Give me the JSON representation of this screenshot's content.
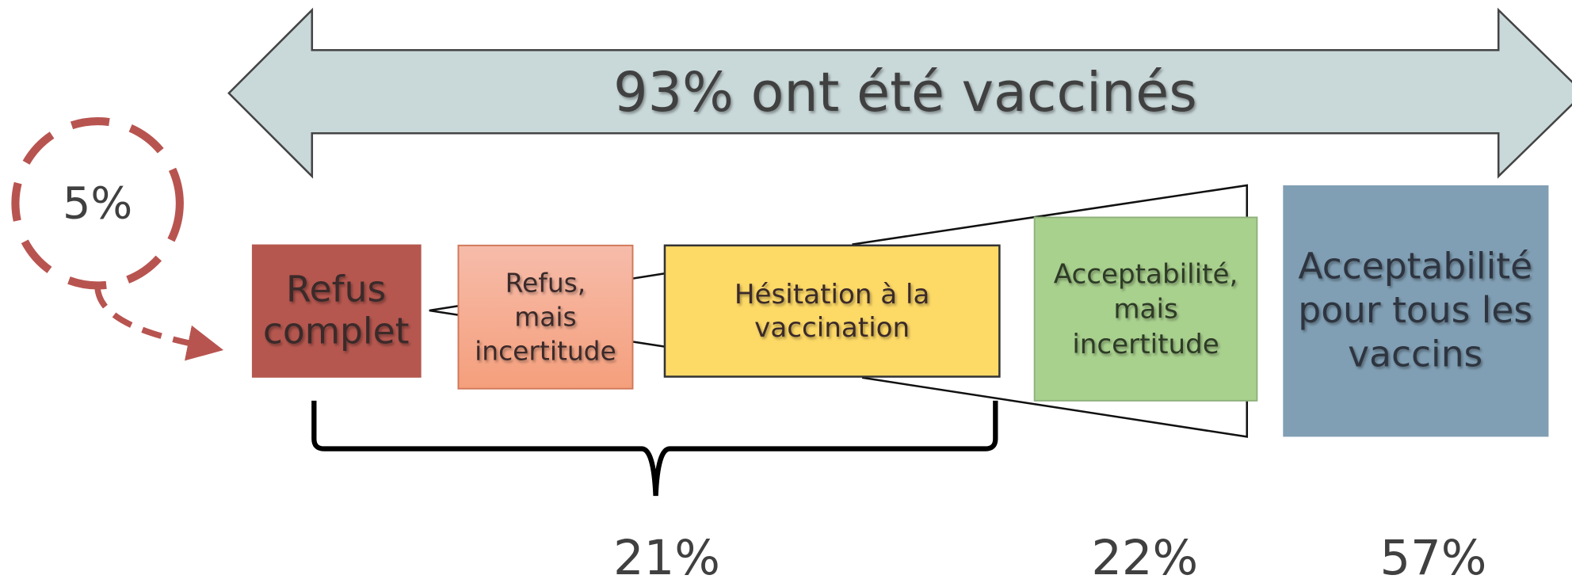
{
  "banner": "93% ont été vaccinés",
  "refusal_share": "5%",
  "boxes": [
    {
      "lines": [
        "Refus",
        "complet"
      ]
    },
    {
      "lines": [
        "Refus,",
        "mais",
        "incertitude"
      ]
    },
    {
      "lines": [
        "Hésitation à la",
        "vaccination"
      ]
    },
    {
      "lines": [
        "Acceptabilité,",
        "mais",
        "incertitude"
      ]
    },
    {
      "lines": [
        "Acceptabilité",
        "pour tous les",
        "vaccins"
      ]
    }
  ],
  "percentages": [
    "21%",
    "22%",
    "57%"
  ]
}
